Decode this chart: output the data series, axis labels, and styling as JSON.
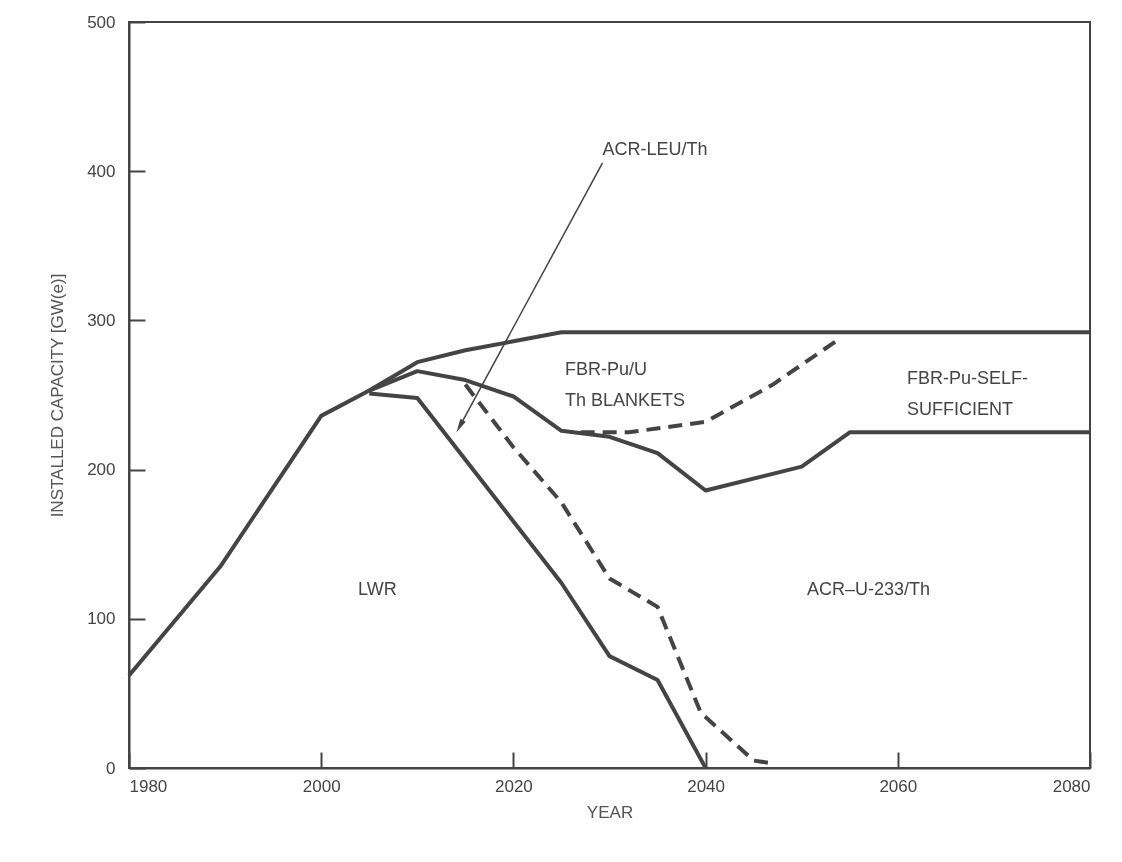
{
  "chart_data": {
    "type": "line",
    "xlabel": "YEAR",
    "ylabel": "INSTALLED CAPACITY [GW(e)]",
    "xlim": [
      1980,
      2080
    ],
    "xticks": [
      1980,
      2000,
      2020,
      2040,
      2060,
      2080
    ],
    "ylim": [
      0,
      500
    ],
    "yticks": [
      0,
      100,
      200,
      300,
      400,
      500
    ],
    "grid": false,
    "marker": "none",
    "series": [
      {
        "color": "#444444",
        "line_style": "solid",
        "x": [
          1980,
          1989.5,
          2000,
          2005,
          2010,
          2015,
          2020,
          2025,
          2080
        ],
        "values": [
          62,
          135,
          236,
          253,
          272,
          280,
          286,
          292,
          292
        ]
      },
      {
        "color": "#444444",
        "line_style": "solid",
        "x": [
          2005,
          2010,
          2015,
          2020,
          2025,
          2030,
          2035,
          2040,
          2050,
          2055,
          2080
        ],
        "values": [
          253,
          266,
          260,
          249,
          226,
          222,
          211,
          186,
          202,
          225,
          225
        ]
      },
      {
        "color": "#444444",
        "line_style": "dashed",
        "x": [
          2027,
          2032,
          2040,
          2047,
          2054
        ],
        "values": [
          225,
          225,
          232,
          257,
          288
        ]
      },
      {
        "color": "#444444",
        "line_style": "dashed",
        "x": [
          2015,
          2020,
          2025,
          2030,
          2035,
          2039.5,
          2045,
          2047
        ],
        "values": [
          257,
          215,
          178,
          127,
          108,
          37,
          5,
          3
        ]
      },
      {
        "color": "#444444",
        "line_style": "solid",
        "x": [
          2005,
          2010,
          2025,
          2030,
          2035,
          2040
        ],
        "values": [
          251,
          248,
          124,
          75,
          59,
          0
        ]
      }
    ],
    "annotations": [
      {
        "text": "ACR-LEU/Th",
        "x": 2014.5,
        "y": 230
      },
      "LWR",
      "FBR-Pu/U\nTh BLANKETS",
      "FBR-Pu-SELF-\nSUFFICIENT",
      "ACR–U-233/Th"
    ]
  }
}
